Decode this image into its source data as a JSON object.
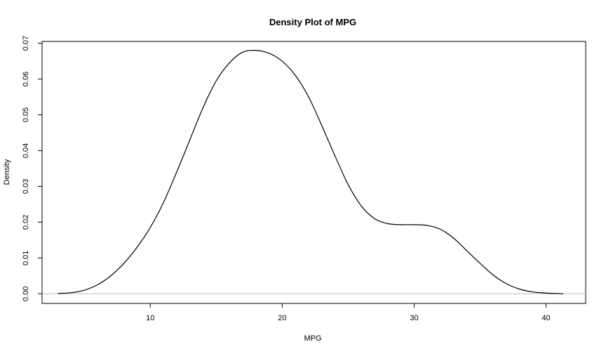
{
  "chart_data": {
    "type": "line",
    "title": "Density Plot of MPG",
    "xlabel": "MPG",
    "ylabel": "Density",
    "xlim": [
      1.8,
      43.0
    ],
    "ylim": [
      -0.0027,
      0.0705
    ],
    "x_ticks": [
      10,
      20,
      30,
      40
    ],
    "x_tick_labels": [
      "10",
      "20",
      "30",
      "40"
    ],
    "y_ticks": [
      0.0,
      0.01,
      0.02,
      0.03,
      0.04,
      0.05,
      0.06,
      0.07
    ],
    "y_tick_labels": [
      "0.00",
      "0.01",
      "0.02",
      "0.03",
      "0.04",
      "0.05",
      "0.06",
      "0.07"
    ],
    "grid": false,
    "baseline_y": 0,
    "colors": {
      "line": "#000000",
      "baseline": "#bdbdbd"
    },
    "series": [
      {
        "x": [
          3.0,
          4.0,
          5.0,
          6.0,
          7.0,
          8.0,
          9.0,
          10.0,
          11.0,
          12.0,
          13.0,
          14.0,
          15.0,
          16.0,
          17.0,
          18.0,
          19.0,
          20.0,
          21.0,
          22.0,
          23.0,
          24.0,
          25.0,
          26.0,
          27.0,
          28.0,
          29.0,
          30.0,
          31.0,
          32.0,
          33.0,
          34.0,
          35.0,
          36.0,
          37.0,
          38.0,
          39.0,
          40.0,
          41.3
        ],
        "y": [
          0.0001,
          0.0003,
          0.001,
          0.0025,
          0.005,
          0.0085,
          0.013,
          0.0185,
          0.0255,
          0.034,
          0.043,
          0.052,
          0.0595,
          0.0645,
          0.0675,
          0.068,
          0.0672,
          0.065,
          0.061,
          0.055,
          0.047,
          0.0385,
          0.0305,
          0.0245,
          0.021,
          0.0196,
          0.0193,
          0.0193,
          0.0191,
          0.018,
          0.0155,
          0.012,
          0.0085,
          0.0052,
          0.0028,
          0.0013,
          0.0005,
          0.0002,
          0.0
        ]
      }
    ]
  }
}
